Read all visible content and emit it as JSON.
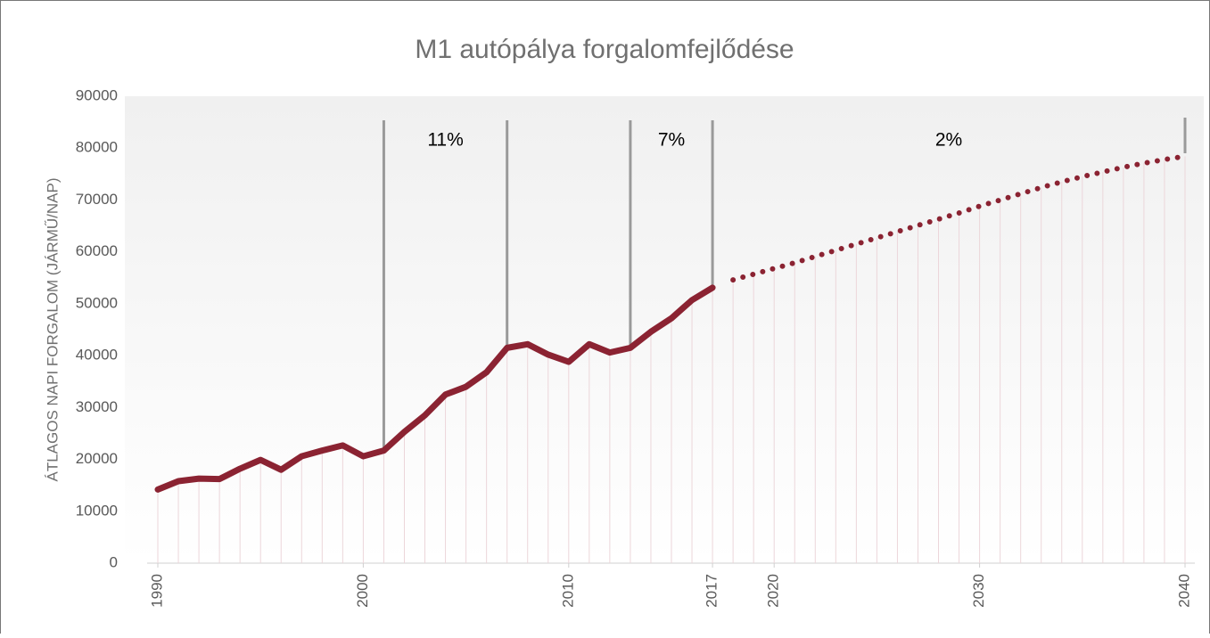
{
  "chart_data": {
    "type": "line",
    "title": "M1 autópálya forgalomfejlődése",
    "y_label": "ÁTLAGOS NAPI FORGALOM (JÁRMŰ/NAP)",
    "x": [
      1990,
      1991,
      1992,
      1993,
      1994,
      1995,
      1996,
      1997,
      1998,
      1999,
      2000,
      2001,
      2002,
      2003,
      2004,
      2005,
      2006,
      2007,
      2008,
      2009,
      2010,
      2011,
      2012,
      2013,
      2014,
      2015,
      2016,
      2017,
      2018,
      2019,
      2020,
      2021,
      2022,
      2023,
      2024,
      2025,
      2026,
      2027,
      2028,
      2029,
      2030,
      2031,
      2032,
      2033,
      2034,
      2035,
      2036,
      2037,
      2038,
      2039,
      2040
    ],
    "series": [
      {
        "color": "#8b2332",
        "style": "solid",
        "values": [
          14200,
          15800,
          16300,
          16200,
          18200,
          19900,
          18000,
          20600,
          21700,
          22700,
          20600,
          21700,
          25300,
          28500,
          32500,
          34000,
          36800,
          41500,
          42200,
          40200,
          38800,
          42200,
          40600,
          41500,
          44600,
          47200,
          50700,
          53100,
          null,
          null,
          null,
          null,
          null,
          null,
          null,
          null,
          null,
          null,
          null,
          null,
          null,
          null,
          null,
          null,
          null,
          null,
          null,
          null,
          null,
          null,
          null
        ]
      },
      {
        "color": "#8b2332",
        "style": "dotted",
        "values": [
          null,
          null,
          null,
          null,
          null,
          null,
          null,
          null,
          null,
          null,
          null,
          null,
          null,
          null,
          null,
          null,
          null,
          null,
          null,
          null,
          null,
          null,
          null,
          null,
          null,
          null,
          null,
          null,
          54600,
          55700,
          56800,
          57900,
          59100,
          60300,
          61500,
          62700,
          63900,
          65100,
          66300,
          67500,
          68800,
          70000,
          71200,
          72400,
          73500,
          74500,
          75400,
          76300,
          77100,
          77800,
          78400
        ]
      }
    ],
    "markers": [
      2001,
      2007,
      2013,
      2017,
      2040
    ],
    "annotations": [
      {
        "text": "11%",
        "x": 2004
      },
      {
        "text": "7%",
        "x": 2015
      },
      {
        "text": "2%",
        "x": 2028.5
      }
    ],
    "xlim": [
      1990,
      2040
    ],
    "xticks": [
      1990,
      2000,
      2010,
      2017,
      2020,
      2030,
      2040
    ],
    "ylim": [
      0,
      90000
    ],
    "yticks": [
      0,
      10000,
      20000,
      30000,
      40000,
      50000,
      60000,
      70000,
      80000,
      90000
    ],
    "drop_lines": true
  }
}
